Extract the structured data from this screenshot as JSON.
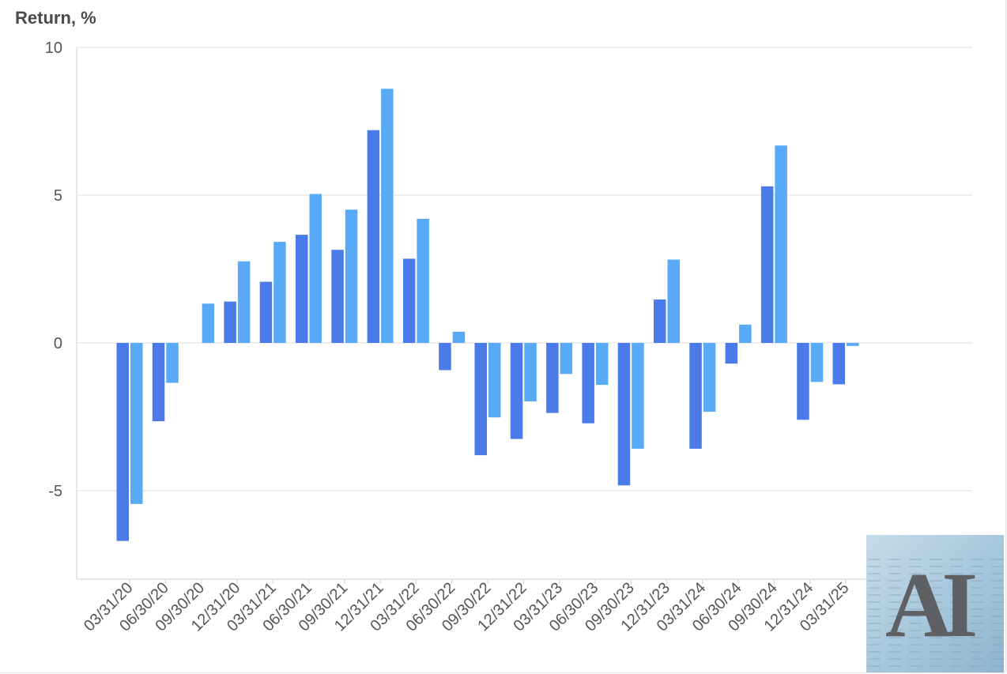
{
  "chart_data": {
    "type": "bar",
    "ylabel": "Return, %",
    "ylim": [
      -8,
      10
    ],
    "yticks": [
      10,
      5,
      0,
      -5
    ],
    "grid": true,
    "categories": [
      "03/31/20",
      "06/30/20",
      "09/30/20",
      "12/31/20",
      "03/31/21",
      "06/30/21",
      "09/30/21",
      "12/31/21",
      "03/31/22",
      "06/30/22",
      "09/30/22",
      "12/31/22",
      "03/31/23",
      "06/30/23",
      "09/30/23",
      "12/31/23",
      "03/31/24",
      "06/30/24",
      "09/30/24",
      "12/31/24",
      "03/31/25"
    ],
    "series": [
      {
        "color": "#4a7be8",
        "values": [
          -6.7,
          -2.65,
          null,
          1.4,
          2.07,
          3.66,
          3.15,
          7.2,
          2.85,
          -0.92,
          -3.8,
          -3.25,
          -2.37,
          -2.72,
          -4.82,
          1.47,
          -3.58,
          -0.7,
          5.3,
          -2.6,
          -1.4
        ]
      },
      {
        "color": "#58aaf7",
        "values": [
          -5.45,
          -1.35,
          1.33,
          2.76,
          3.42,
          5.04,
          4.51,
          8.6,
          4.2,
          0.38,
          -2.52,
          -1.98,
          -1.05,
          -1.42,
          -3.58,
          2.82,
          -2.33,
          0.62,
          6.68,
          -1.32,
          -0.1
        ]
      }
    ]
  },
  "logo": {
    "text": "AI"
  }
}
